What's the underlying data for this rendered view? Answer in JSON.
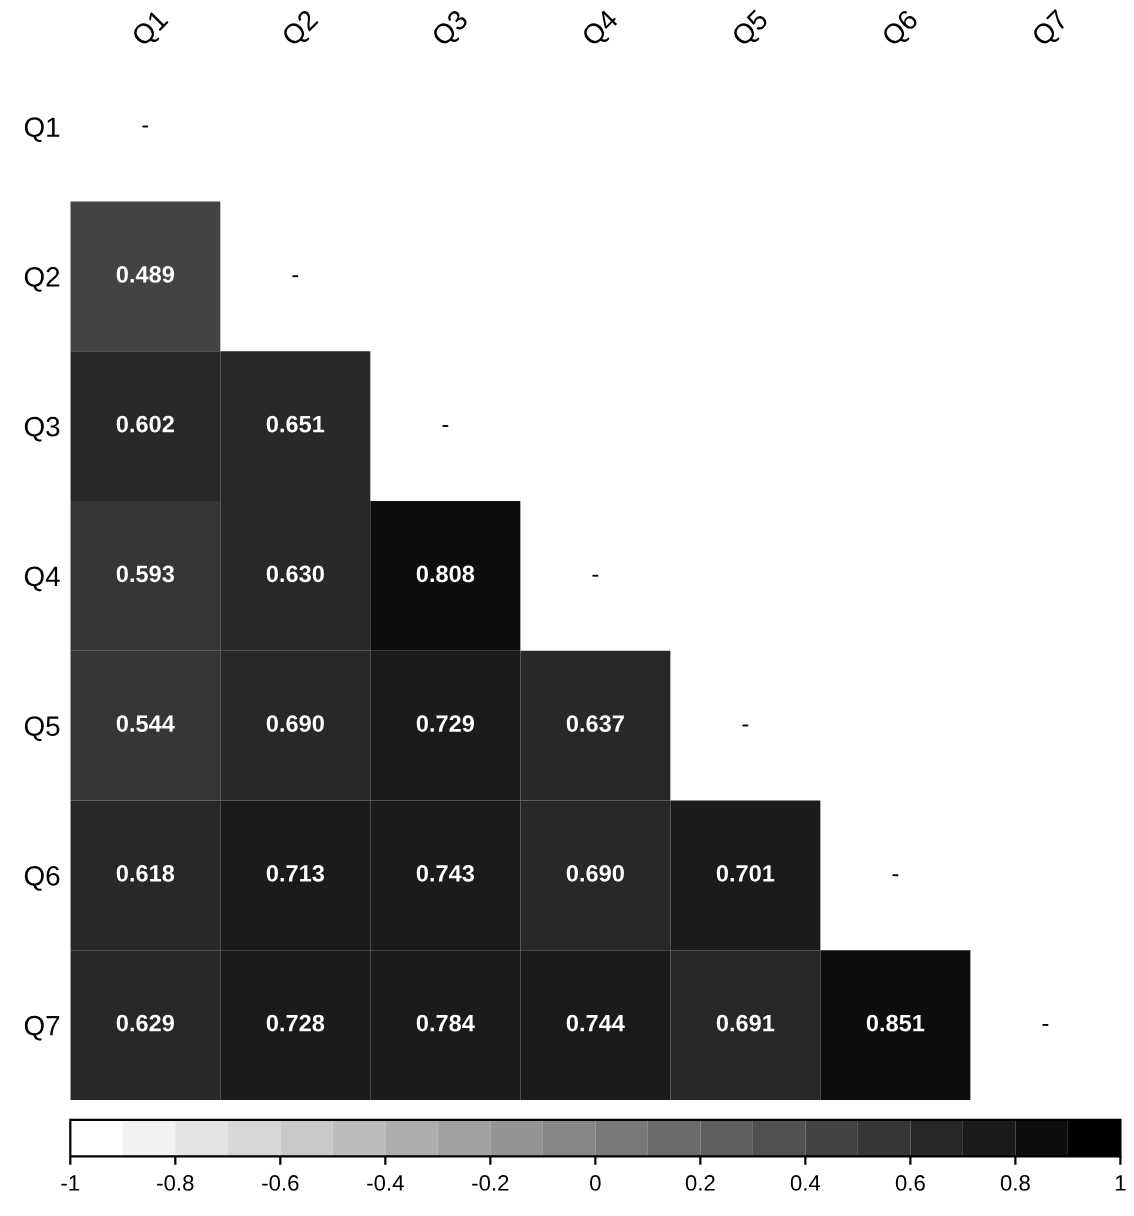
{
  "chart_data": {
    "type": "heatmap",
    "categories": [
      "Q1",
      "Q2",
      "Q3",
      "Q4",
      "Q5",
      "Q6",
      "Q7"
    ],
    "y_categories": [
      "Q1",
      "Q2",
      "Q3",
      "Q4",
      "Q5",
      "Q6",
      "Q7"
    ],
    "cells": [
      [
        null,
        null,
        null,
        null,
        null,
        null,
        null
      ],
      [
        0.489,
        null,
        null,
        null,
        null,
        null,
        null
      ],
      [
        0.602,
        0.651,
        null,
        null,
        null,
        null,
        null
      ],
      [
        0.593,
        0.63,
        0.808,
        null,
        null,
        null,
        null
      ],
      [
        0.544,
        0.69,
        0.729,
        0.637,
        null,
        null,
        null
      ],
      [
        0.618,
        0.713,
        0.743,
        0.69,
        0.701,
        null,
        null
      ],
      [
        0.629,
        0.728,
        0.784,
        0.744,
        0.691,
        0.851,
        null
      ]
    ],
    "cell_labels": [
      [
        "-",
        null,
        null,
        null,
        null,
        null,
        null
      ],
      [
        "0.489",
        "-",
        null,
        null,
        null,
        null,
        null
      ],
      [
        "0.602",
        "0.651",
        "-",
        null,
        null,
        null,
        null
      ],
      [
        "0.593",
        "0.630",
        "0.808",
        "-",
        null,
        null,
        null
      ],
      [
        "0.544",
        "0.690",
        "0.729",
        "0.637",
        "-",
        null,
        null
      ],
      [
        "0.618",
        "0.713",
        "0.743",
        "0.690",
        "0.701",
        "-",
        null
      ],
      [
        "0.629",
        "0.728",
        "0.784",
        "0.744",
        "0.691",
        "0.851",
        "-"
      ]
    ],
    "clim": [
      -1,
      1
    ],
    "cticks": [
      -1,
      -0.8,
      -0.6,
      -0.4,
      -0.2,
      0,
      0.2,
      0.4,
      0.6,
      0.8,
      1
    ]
  }
}
